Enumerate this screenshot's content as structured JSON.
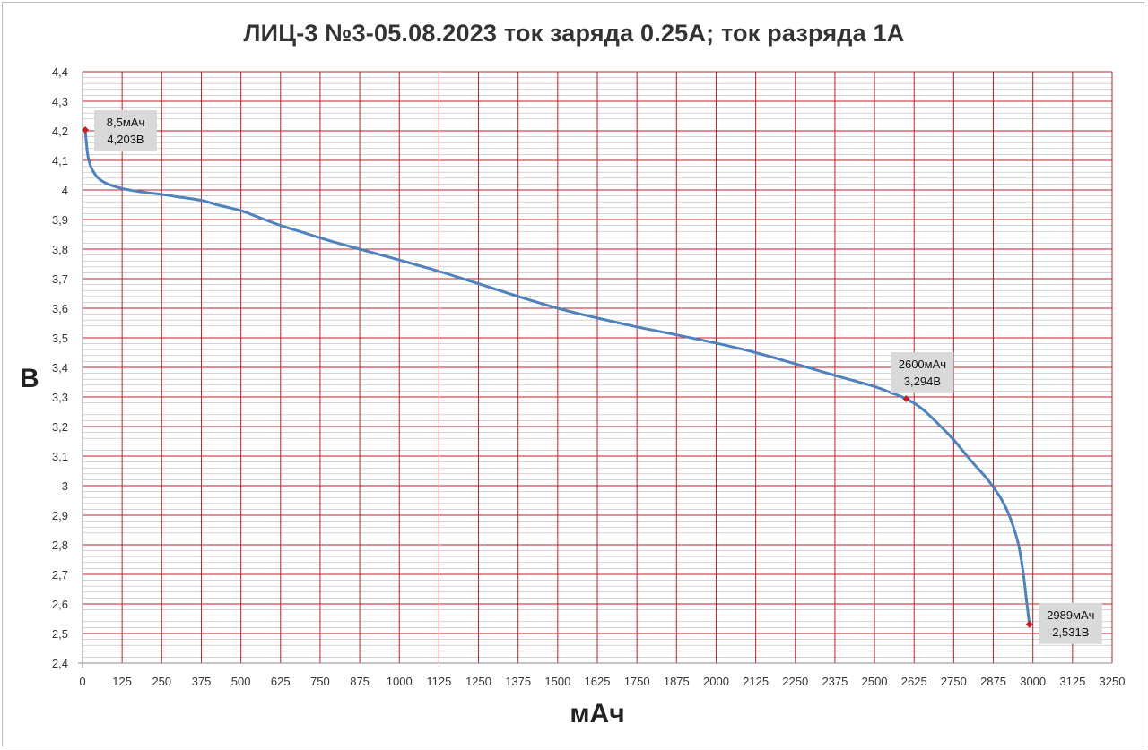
{
  "chart_data": {
    "type": "line",
    "title": "ЛИЦ-3 №3-05.08.2023 ток заряда 0.25А; ток разряда 1А",
    "xlabel": "мАч",
    "ylabel": "В",
    "xlim": [
      0,
      3250
    ],
    "ylim": [
      2.4,
      4.4
    ],
    "x_ticks": [
      0,
      125,
      250,
      375,
      500,
      625,
      750,
      875,
      1000,
      1125,
      1250,
      1375,
      1500,
      1625,
      1750,
      1875,
      2000,
      2125,
      2250,
      2375,
      2500,
      2625,
      2750,
      2875,
      3000,
      3125,
      3250
    ],
    "x_tick_labels": [
      "0",
      "125",
      "250",
      "375",
      "500",
      "625",
      "750",
      "875",
      "1000",
      "1125",
      "1250",
      "1375",
      "1500",
      "1625",
      "1750",
      "1875",
      "2000",
      "2125",
      "2250",
      "2375",
      "2500",
      "2625",
      "2750",
      "2875",
      "3000",
      "3125",
      "3250"
    ],
    "y_ticks": [
      2.4,
      2.5,
      2.6,
      2.7,
      2.8,
      2.9,
      3.0,
      3.1,
      3.2,
      3.3,
      3.4,
      3.5,
      3.6,
      3.7,
      3.8,
      3.9,
      4.0,
      4.1,
      4.2,
      4.3,
      4.4
    ],
    "y_tick_labels": [
      "2,4",
      "2,5",
      "2,6",
      "2,7",
      "2,8",
      "2,9",
      "3",
      "3,1",
      "3,2",
      "3,3",
      "3,4",
      "3,5",
      "3,6",
      "3,7",
      "3,8",
      "3,9",
      "4",
      "4,1",
      "4,2",
      "4,3",
      "4,4"
    ],
    "grid": true,
    "grid_color": "#c0202a",
    "minor_grid_color": "#b8b8b8",
    "line_color": "#4f81bd",
    "marker_color": "#c0202a",
    "series": [
      {
        "x": [
          8.5,
          15,
          20,
          30,
          50,
          80,
          125,
          175,
          250,
          300,
          375,
          425,
          500,
          550,
          625,
          700,
          750,
          800,
          875,
          950,
          1000,
          1125,
          1250,
          1375,
          1500,
          1625,
          1750,
          1875,
          2000,
          2125,
          2250,
          2375,
          2500,
          2550,
          2600,
          2650,
          2700,
          2750,
          2800,
          2850,
          2875,
          2900,
          2925,
          2950,
          2960,
          2970,
          2980,
          2989
        ],
        "y": [
          4.203,
          4.13,
          4.1,
          4.07,
          4.04,
          4.02,
          4.005,
          3.995,
          3.985,
          3.977,
          3.965,
          3.95,
          3.93,
          3.91,
          3.88,
          3.855,
          3.838,
          3.822,
          3.8,
          3.778,
          3.763,
          3.725,
          3.683,
          3.64,
          3.6,
          3.567,
          3.537,
          3.51,
          3.482,
          3.45,
          3.412,
          3.373,
          3.335,
          3.315,
          3.294,
          3.26,
          3.21,
          3.155,
          3.09,
          3.03,
          2.995,
          2.955,
          2.9,
          2.82,
          2.77,
          2.7,
          2.61,
          2.531
        ]
      }
    ],
    "annotations": [
      {
        "x": 8.5,
        "y": 4.203,
        "line1": "8,5мАч",
        "line2": "4,203В"
      },
      {
        "x": 2600,
        "y": 3.294,
        "line1": "2600мАч",
        "line2": "3,294В"
      },
      {
        "x": 2989,
        "y": 2.531,
        "line1": "2989мАч",
        "line2": "2,531В"
      }
    ]
  }
}
